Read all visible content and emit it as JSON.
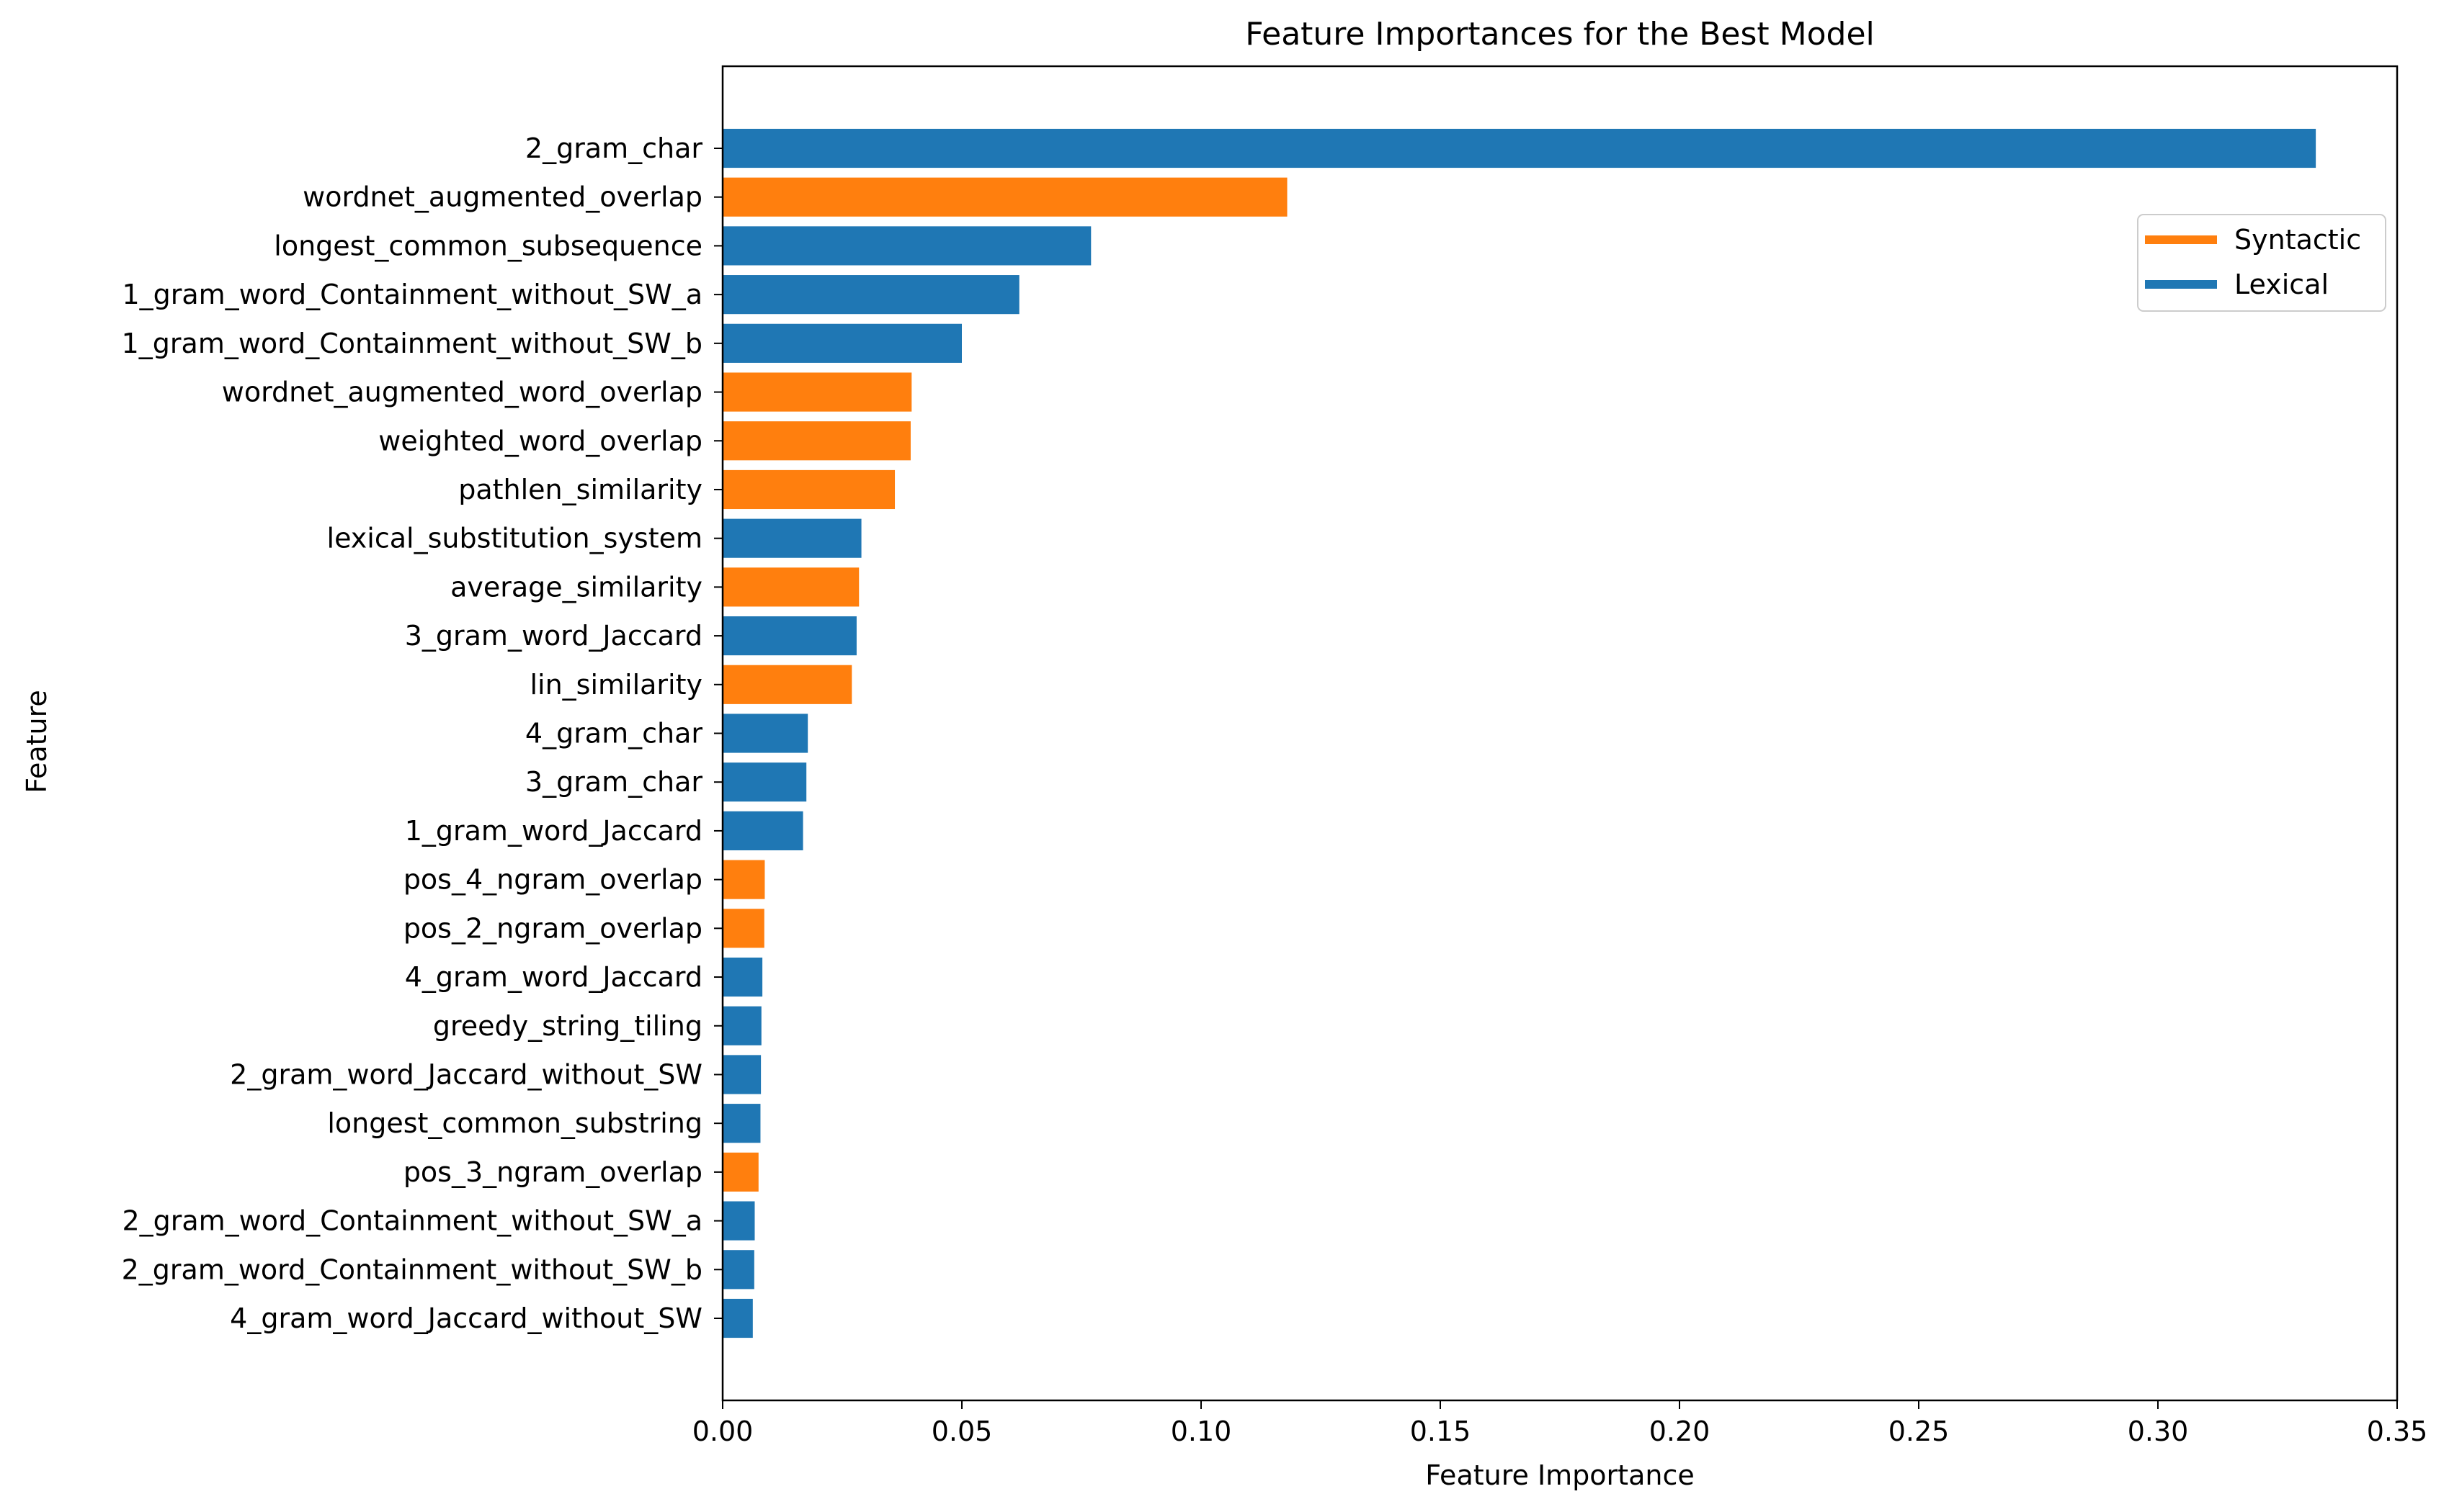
{
  "chart_data": {
    "type": "bar",
    "orientation": "horizontal",
    "title": "Feature Importances for the Best Model",
    "xlabel": "Feature Importance",
    "ylabel": "Feature",
    "xlim": [
      0,
      0.35
    ],
    "xticks": [
      "0.00",
      "0.05",
      "0.10",
      "0.15",
      "0.20",
      "0.25",
      "0.30",
      "0.35"
    ],
    "grid": false,
    "legend_position": "upper-right",
    "legend": [
      {
        "label": "Syntactic",
        "color": "#ff7f0e"
      },
      {
        "label": "Lexical",
        "color": "#1f77b4"
      }
    ],
    "categories": [
      "2_gram_char",
      "wordnet_augmented_overlap",
      "longest_common_subsequence",
      "1_gram_word_Containment_without_SW_a",
      "1_gram_word_Containment_without_SW_b",
      "wordnet_augmented_word_overlap",
      "weighted_word_overlap",
      "pathlen_similarity",
      "lexical_substitution_system",
      "average_similarity",
      "3_gram_word_Jaccard",
      "lin_similarity",
      "4_gram_char",
      "3_gram_char",
      "1_gram_word_Jaccard",
      "pos_4_ngram_overlap",
      "pos_2_ngram_overlap",
      "4_gram_word_Jaccard",
      "greedy_string_tiling",
      "2_gram_word_Jaccard_without_SW",
      "longest_common_substring",
      "pos_3_ngram_overlap",
      "2_gram_word_Containment_without_SW_a",
      "2_gram_word_Containment_without_SW_b",
      "4_gram_word_Jaccard_without_SW"
    ],
    "values": [
      0.333,
      0.118,
      0.077,
      0.062,
      0.05,
      0.0395,
      0.0393,
      0.036,
      0.029,
      0.0285,
      0.028,
      0.027,
      0.0178,
      0.0175,
      0.0168,
      0.0088,
      0.0087,
      0.0083,
      0.0081,
      0.008,
      0.0079,
      0.0075,
      0.0067,
      0.0066,
      0.0063
    ],
    "groups": [
      "Lexical",
      "Syntactic",
      "Lexical",
      "Lexical",
      "Lexical",
      "Syntactic",
      "Syntactic",
      "Syntactic",
      "Lexical",
      "Syntactic",
      "Lexical",
      "Syntactic",
      "Lexical",
      "Lexical",
      "Lexical",
      "Syntactic",
      "Syntactic",
      "Lexical",
      "Lexical",
      "Lexical",
      "Lexical",
      "Syntactic",
      "Lexical",
      "Lexical",
      "Lexical"
    ]
  }
}
